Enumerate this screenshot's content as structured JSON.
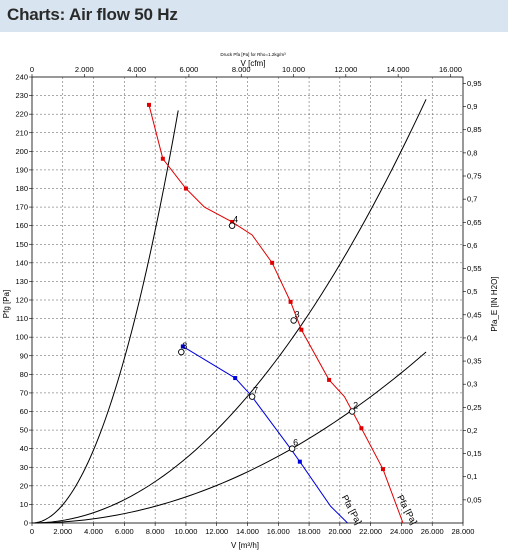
{
  "page": {
    "title": "Charts: Air flow 50 Hz"
  },
  "chart_data": {
    "type": "line",
    "caption": "Druck Pfa [Pa] for Rho=1.2kg/m³",
    "xlabel": "V [m³/h]",
    "x2label": "V [cfm]",
    "ylabel": "Pfg [Pa]",
    "y2label": "Pfa_E [IN H2O]",
    "xlim": [
      0,
      28000
    ],
    "ylim": [
      0,
      240
    ],
    "x2lim": [
      0,
      16480
    ],
    "y2lim": [
      0,
      0.964
    ],
    "x_ticks": [
      0,
      2000,
      4000,
      6000,
      8000,
      10000,
      12000,
      14000,
      16000,
      18000,
      20000,
      22000,
      24000,
      26000,
      28000
    ],
    "x_tick_labels": [
      "0",
      "2.000",
      "4.000",
      "6.000",
      "8.000",
      "10.000",
      "12.000",
      "14.000",
      "16.000",
      "18.000",
      "20.000",
      "22.000",
      "24.000",
      "26.000",
      "28.000"
    ],
    "y_ticks": [
      0,
      10,
      20,
      30,
      40,
      50,
      60,
      70,
      80,
      90,
      100,
      110,
      120,
      130,
      140,
      150,
      160,
      170,
      180,
      190,
      200,
      210,
      220,
      230,
      240
    ],
    "x2_ticks": [
      0,
      2000,
      4000,
      6000,
      8000,
      10000,
      12000,
      14000,
      16000
    ],
    "x2_tick_labels": [
      "0",
      "2.000",
      "4.000",
      "6.000",
      "8.000",
      "10.000",
      "12.000",
      "14.000",
      "16.000"
    ],
    "y2_ticks": [
      0.05,
      0.1,
      0.15,
      0.2,
      0.25,
      0.3,
      0.35,
      0.4,
      0.45,
      0.5,
      0.55,
      0.6,
      0.65,
      0.7,
      0.75,
      0.8,
      0.85,
      0.9,
      0.95
    ],
    "y2_tick_labels": [
      "0,05",
      "0,1",
      "0,15",
      "0,2",
      "0,25",
      "0,3",
      "0,35",
      "0,4",
      "0,45",
      "0,5",
      "0,55",
      "0,6",
      "0,65",
      "0,7",
      "0,75",
      "0,8",
      "0,85",
      "0,9",
      "0,95"
    ],
    "grid": true,
    "series": [
      {
        "name": "Pfa [Pa]",
        "color": "#e00000",
        "x": [
          7600,
          8500,
          10000,
          11200,
          13000,
          14300,
          15600,
          16800,
          17500,
          19300,
          20300,
          21400,
          22800,
          24100
        ],
        "y": [
          225,
          196,
          180,
          170,
          162,
          155,
          140,
          119,
          104,
          77,
          68,
          51,
          29,
          0
        ],
        "markers_x": [
          7600,
          8500,
          10000,
          13000,
          15600,
          16800,
          17500,
          19300,
          21400,
          22800
        ],
        "markers_y": [
          225,
          196,
          180,
          162,
          140,
          119,
          104,
          77,
          51,
          29
        ]
      },
      {
        "name": "Pfa [Pa]",
        "color": "#0000dd",
        "x": [
          9800,
          13200,
          14200,
          16800,
          17400,
          19400,
          20500
        ],
        "y": [
          95,
          78,
          69,
          40,
          33,
          9,
          0
        ],
        "markers_x": [
          9800,
          13200,
          17400
        ],
        "markers_y": [
          95,
          78,
          33
        ]
      }
    ],
    "system_curves": [
      {
        "x": [
          0,
          9500
        ],
        "y": [
          0,
          222
        ]
      },
      {
        "x": [
          0,
          25600
        ],
        "y": [
          0,
          228
        ]
      },
      {
        "x": [
          0,
          25600
        ],
        "y": [
          0,
          92
        ]
      }
    ],
    "operating_points": [
      {
        "label": "4",
        "x": 13000,
        "y": 160
      },
      {
        "label": "3",
        "x": 17000,
        "y": 109
      },
      {
        "label": "2",
        "x": 20800,
        "y": 60
      },
      {
        "label": "8",
        "x": 9700,
        "y": 92
      },
      {
        "label": "7",
        "x": 14300,
        "y": 68
      },
      {
        "label": "6",
        "x": 16900,
        "y": 40
      }
    ]
  }
}
